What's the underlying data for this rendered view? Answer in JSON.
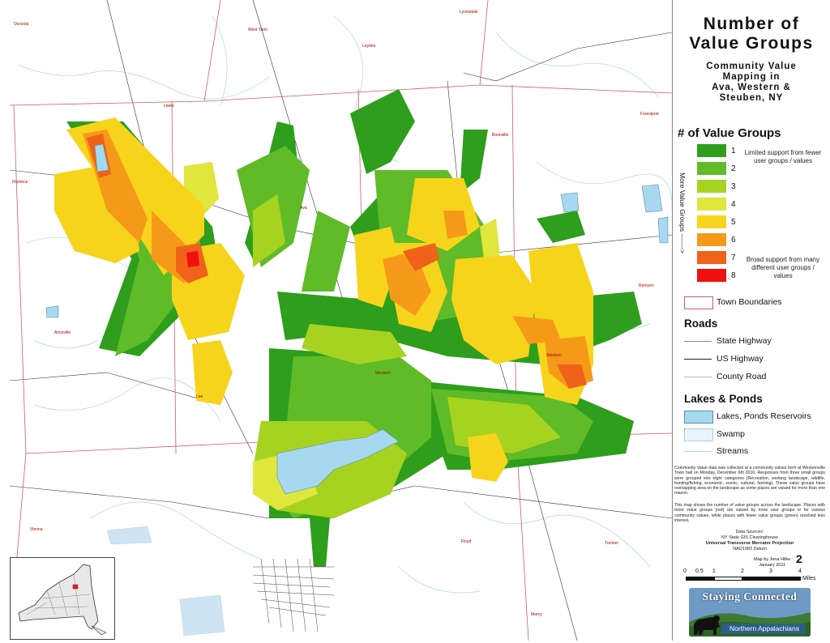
{
  "title": {
    "line1": "Number of",
    "line2": "Value Groups"
  },
  "subtitle": {
    "line1": "Community Value",
    "line2": "Mapping in",
    "line3": "Ava, Western &",
    "line4": "Steuben, NY"
  },
  "legend": {
    "heading": "# of Value Groups",
    "side_label": "More Value Groups ------->",
    "items": [
      {
        "label": "1",
        "color": "#2e9e1c"
      },
      {
        "label": "2",
        "color": "#5fbb28"
      },
      {
        "label": "3",
        "color": "#a6d320"
      },
      {
        "label": "4",
        "color": "#dfe63c"
      },
      {
        "label": "5",
        "color": "#f7d41c"
      },
      {
        "label": "6",
        "color": "#f59a18"
      },
      {
        "label": "7",
        "color": "#f0621a"
      },
      {
        "label": "8",
        "color": "#f01010"
      }
    ],
    "note_low": "Limited support from fewer user groups / values",
    "note_high": "Broad support from many different user groups / values",
    "town_boundaries": "Town Boundaries"
  },
  "roads": {
    "heading": "Roads",
    "items": [
      "State Highway",
      "US Highway",
      "County Road"
    ]
  },
  "water": {
    "heading": "Lakes & Ponds",
    "items": [
      "Lakes, Ponds Reservoirs",
      "Swamp",
      "Streams"
    ],
    "lake_color": "#a6d9ef"
  },
  "description": "Community Value data was collected at a community values form at Westernville Town hall on Monday, December 6th 2010. Responses from three small groups were grouped into eight categories (Recreation, working landscape, wildlife, hunting/fishing, economic, scenic, cultural, farming). These value groups have overlapping area on the landscape as some places are valued for more than one reason.",
  "description2": "This map shows the number of value groups across the landscape. Places with more value groups (red) are valued by more user groups or for various community values, while places with fewer value groups (green) received less interest.",
  "sources": {
    "heading": "Data Sources:",
    "line1": "NY State GIS Clearinghouse",
    "line2": "Universal Transverse Mercator Projection",
    "line3": "NAD1983 Datum",
    "credit1": "Map by Jena Hilke",
    "credit2": "January 2011"
  },
  "scale": {
    "ticks": [
      "0",
      "0.5",
      "1",
      "2",
      "3",
      "4"
    ],
    "unit": "Miles",
    "big_number": "2"
  },
  "logo": {
    "line1": "Staying Connected",
    "line2": "Northern Appalachians"
  },
  "places": [
    {
      "name": "Osceola"
    },
    {
      "name": "West Turin"
    },
    {
      "name": "Leyden"
    },
    {
      "name": "Lyonsdale"
    },
    {
      "name": "Lewis"
    },
    {
      "name": "Boonville"
    },
    {
      "name": "Forestport"
    },
    {
      "name": "Florence"
    },
    {
      "name": "Ava"
    },
    {
      "name": "Remsen"
    },
    {
      "name": "Annsville"
    },
    {
      "name": "Western"
    },
    {
      "name": "Steuben"
    },
    {
      "name": "Lee"
    },
    {
      "name": "Vienna"
    },
    {
      "name": "Floyd"
    },
    {
      "name": "Trenton"
    },
    {
      "name": "Marcy"
    }
  ]
}
